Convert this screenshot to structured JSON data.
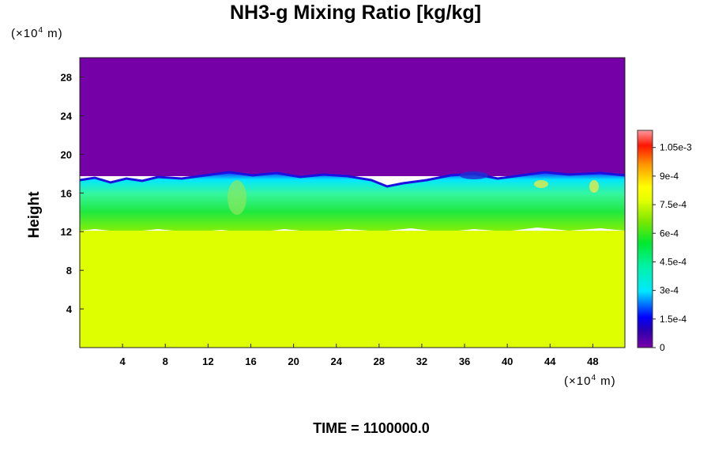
{
  "chart_data": {
    "type": "heatmap",
    "title": "NH3-g Mixing Ratio [kg/kg]",
    "ylabel": "Height",
    "xlabel": "",
    "y_unit": {
      "prefix": "(×10",
      "exp": "4",
      "suffix": " m)"
    },
    "x_unit": {
      "prefix": "(×10",
      "exp": "4",
      "suffix": " m)"
    },
    "xlim": [
      0,
      51
    ],
    "ylim": [
      0,
      30
    ],
    "x_ticks": [
      "4",
      "8",
      "12",
      "16",
      "20",
      "24",
      "28",
      "32",
      "36",
      "40",
      "44",
      "48"
    ],
    "y_ticks": [
      "4",
      "8",
      "12",
      "16",
      "20",
      "24",
      "28"
    ],
    "colorbar": {
      "min": 0,
      "max": 0.00114,
      "tick_values": [
        0,
        0.00015,
        0.0003,
        0.00045,
        0.0006,
        0.00075,
        0.0009,
        0.00105
      ],
      "tick_labels": [
        "0",
        "1.5e-4",
        "3e-4",
        "4.5e-4",
        "6e-4",
        "7.5e-4",
        "9e-4",
        "1.05e-3"
      ]
    },
    "fields": {
      "lower_layer": {
        "height_range": [
          0,
          12
        ],
        "value": 0.00078
      },
      "mixed_layer": {
        "height_range": [
          12,
          17.5
        ],
        "value_range": [
          0.0003,
          0.0009
        ]
      },
      "upper_layer": {
        "height_range": [
          17.5,
          30
        ],
        "value": 0
      }
    },
    "footer": "TIME = 1100000.0"
  }
}
